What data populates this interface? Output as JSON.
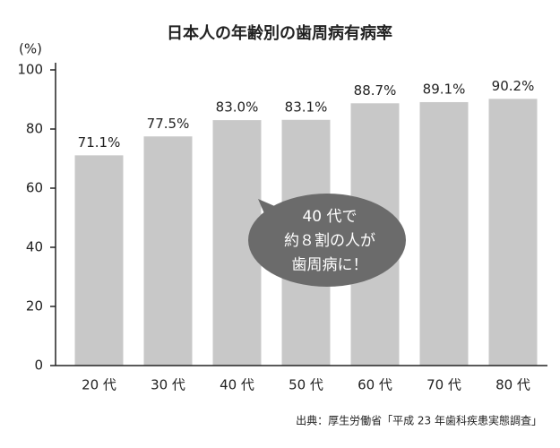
{
  "chart_data": {
    "type": "bar",
    "title": "日本人の年齢別の歯周病有病率",
    "y_unit": "(%)",
    "categories": [
      "20 代",
      "30 代",
      "40 代",
      "50 代",
      "60 代",
      "70 代",
      "80 代"
    ],
    "values": [
      71.1,
      77.5,
      83.0,
      83.1,
      88.7,
      89.1,
      90.2
    ],
    "value_labels": [
      "71.1%",
      "77.5%",
      "83.0%",
      "83.1%",
      "88.7%",
      "89.1%",
      "90.2%"
    ],
    "color": "#c8c8c8",
    "ylim": [
      0,
      100
    ],
    "yticks": [
      0,
      20,
      40,
      60,
      80,
      100
    ],
    "annotation": [
      "40 代で",
      "約８割の人が",
      "歯周病に！"
    ],
    "source": "出典：厚生労働省「平成 23 年歯科疾患実態調査」"
  }
}
